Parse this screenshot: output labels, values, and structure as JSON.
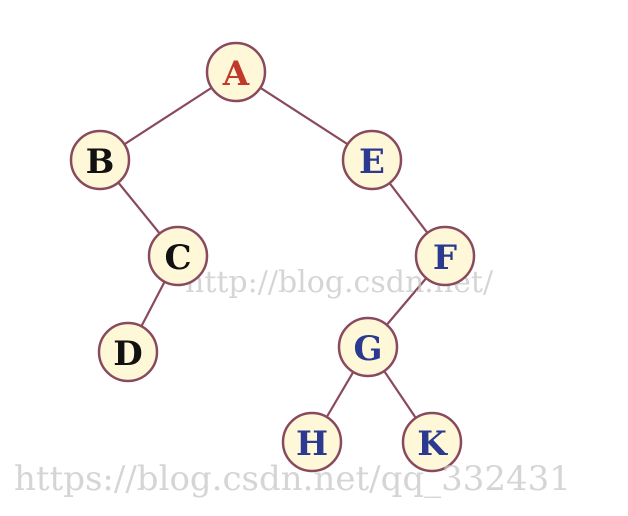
{
  "colors": {
    "root_text": "#c0392b",
    "right_text": "#2b3990",
    "left_text": "#111111"
  },
  "tree": {
    "nodes": [
      {
        "id": "A",
        "label": "A",
        "color": "#c0392b"
      },
      {
        "id": "B",
        "label": "B",
        "color": "#111111"
      },
      {
        "id": "C",
        "label": "C",
        "color": "#111111"
      },
      {
        "id": "D",
        "label": "D",
        "color": "#111111"
      },
      {
        "id": "E",
        "label": "E",
        "color": "#2b3990"
      },
      {
        "id": "F",
        "label": "F",
        "color": "#2b3990"
      },
      {
        "id": "G",
        "label": "G",
        "color": "#2b3990"
      },
      {
        "id": "H",
        "label": "H",
        "color": "#2b3990"
      },
      {
        "id": "K",
        "label": "K",
        "color": "#2b3990"
      }
    ],
    "edges": [
      [
        "A",
        "B"
      ],
      [
        "A",
        "E"
      ],
      [
        "B",
        "C"
      ],
      [
        "C",
        "D"
      ],
      [
        "E",
        "F"
      ],
      [
        "F",
        "G"
      ],
      [
        "G",
        "H"
      ],
      [
        "G",
        "K"
      ]
    ]
  },
  "watermarks": {
    "center": "http://blog.csdn.net/",
    "bottom": "https://blog.csdn.net/qq_332431"
  }
}
